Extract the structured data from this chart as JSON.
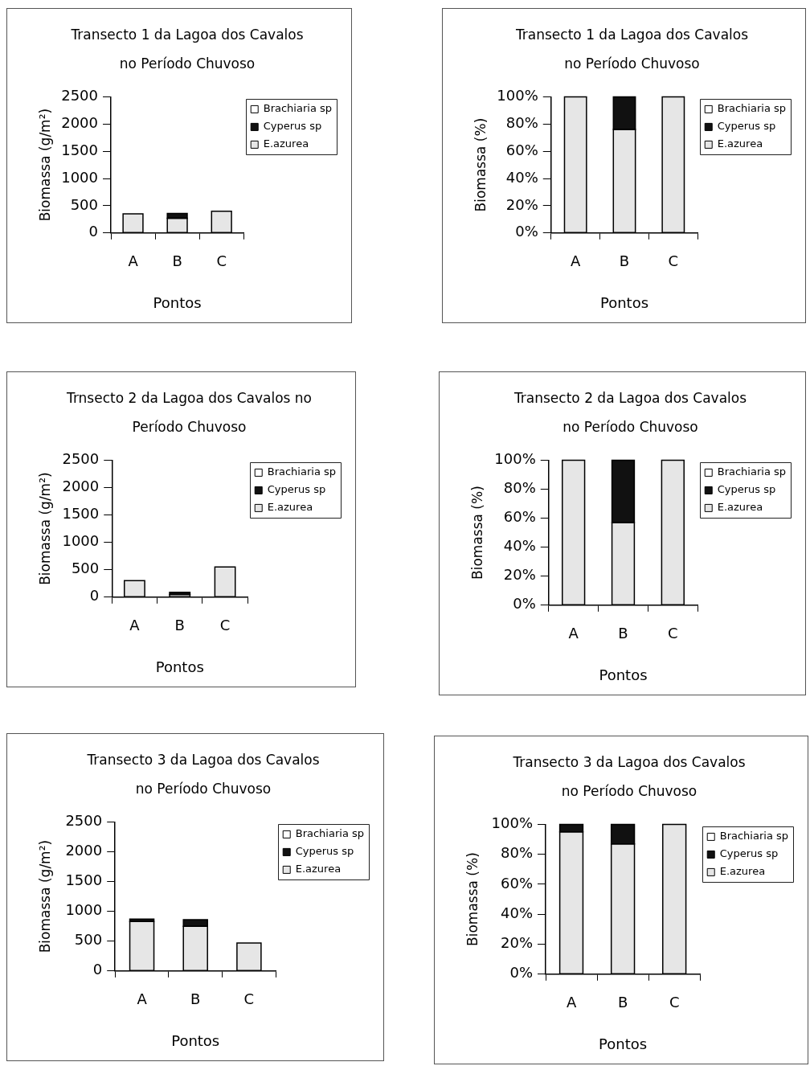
{
  "chart_data": [
    {
      "type": "bar",
      "title": "Transecto 1 da Lagoa dos Cavalos\nno Período Chuvoso",
      "xlabel": "Pontos",
      "ylabel": "Biomassa (g/m²)",
      "categories": [
        "A",
        "B",
        "C"
      ],
      "series": [
        {
          "name": "E.azurea",
          "color": "#e6e6e6",
          "values": [
            350,
            270,
            400
          ]
        },
        {
          "name": "Cyperus sp",
          "color": "#111111",
          "values": [
            0,
            90,
            0
          ]
        },
        {
          "name": "Brachiaria sp",
          "color": "#ffffff",
          "values": [
            0,
            0,
            0
          ]
        }
      ],
      "stacked": true,
      "ylim": [
        0,
        2500
      ],
      "yticks": [
        0,
        500,
        1000,
        1500,
        2000,
        2500
      ],
      "legend": "top right"
    },
    {
      "type": "bar",
      "title": "Transecto 1 da Lagoa dos Cavalos\nno Período Chuvoso",
      "xlabel": "Pontos",
      "ylabel": "Biomassa (%)",
      "categories": [
        "A",
        "B",
        "C"
      ],
      "series": [
        {
          "name": "E.azurea",
          "color": "#e6e6e6",
          "values": [
            100,
            76,
            100
          ]
        },
        {
          "name": "Cyperus sp",
          "color": "#111111",
          "values": [
            0,
            24,
            0
          ]
        },
        {
          "name": "Brachiaria sp",
          "color": "#ffffff",
          "values": [
            0,
            0,
            0
          ]
        }
      ],
      "stacked": true,
      "ylim": [
        0,
        100
      ],
      "yticks": [
        {
          "value": 0,
          "label": "0%"
        },
        {
          "value": 20,
          "label": "20%"
        },
        {
          "value": 40,
          "label": "40%"
        },
        {
          "value": 60,
          "label": "60%"
        },
        {
          "value": 80,
          "label": "80%"
        },
        {
          "value": 100,
          "label": "100%"
        }
      ],
      "legend": "top right"
    },
    {
      "type": "bar",
      "title": "Trnsecto 2 da Lagoa dos Cavalos no\nPeríodo Chuvoso",
      "xlabel": "Pontos",
      "ylabel": "Biomassa (g/m²)",
      "categories": [
        "A",
        "B",
        "C"
      ],
      "series": [
        {
          "name": "E.azurea",
          "color": "#e6e6e6",
          "values": [
            300,
            50,
            550
          ]
        },
        {
          "name": "Cyperus sp",
          "color": "#111111",
          "values": [
            0,
            40,
            0
          ]
        },
        {
          "name": "Brachiaria sp",
          "color": "#ffffff",
          "values": [
            0,
            0,
            0
          ]
        }
      ],
      "stacked": true,
      "ylim": [
        0,
        2500
      ],
      "yticks": [
        0,
        500,
        1000,
        1500,
        2000,
        2500
      ],
      "legend": "top right"
    },
    {
      "type": "bar",
      "title": "Transecto 2 da Lagoa dos Cavalos\nno Período Chuvoso",
      "xlabel": "Pontos",
      "ylabel": "Biomassa (%)",
      "categories": [
        "A",
        "B",
        "C"
      ],
      "series": [
        {
          "name": "E.azurea",
          "color": "#e6e6e6",
          "values": [
            100,
            57,
            100
          ]
        },
        {
          "name": "Cyperus sp",
          "color": "#111111",
          "values": [
            0,
            43,
            0
          ]
        },
        {
          "name": "Brachiaria sp",
          "color": "#ffffff",
          "values": [
            0,
            0,
            0
          ]
        }
      ],
      "stacked": true,
      "ylim": [
        0,
        100
      ],
      "yticks": [
        {
          "value": 0,
          "label": "0%"
        },
        {
          "value": 20,
          "label": "20%"
        },
        {
          "value": 40,
          "label": "40%"
        },
        {
          "value": 60,
          "label": "60%"
        },
        {
          "value": 80,
          "label": "80%"
        },
        {
          "value": 100,
          "label": "100%"
        }
      ],
      "legend": "top right"
    },
    {
      "type": "bar",
      "title": "Transecto 3 da Lagoa dos Cavalos\nno Período Chuvoso",
      "xlabel": "Pontos",
      "ylabel": "Biomassa (g/m²)",
      "categories": [
        "A",
        "B",
        "C"
      ],
      "series": [
        {
          "name": "E.azurea",
          "color": "#e6e6e6",
          "values": [
            830,
            750,
            470
          ]
        },
        {
          "name": "Cyperus sp",
          "color": "#111111",
          "values": [
            40,
            110,
            0
          ]
        },
        {
          "name": "Brachiaria sp",
          "color": "#ffffff",
          "values": [
            0,
            0,
            0
          ]
        }
      ],
      "stacked": true,
      "ylim": [
        0,
        2500
      ],
      "yticks": [
        0,
        500,
        1000,
        1500,
        2000,
        2500
      ],
      "legend": "top right"
    },
    {
      "type": "bar",
      "title": "Transecto 3 da Lagoa dos Cavalos\nno Período Chuvoso",
      "xlabel": "Pontos",
      "ylabel": "Biomassa (%)",
      "categories": [
        "A",
        "B",
        "C"
      ],
      "series": [
        {
          "name": "E.azurea",
          "color": "#e6e6e6",
          "values": [
            95,
            87,
            100
          ]
        },
        {
          "name": "Cyperus sp",
          "color": "#111111",
          "values": [
            5,
            13,
            0
          ]
        },
        {
          "name": "Brachiaria sp",
          "color": "#ffffff",
          "values": [
            0,
            0,
            0
          ]
        }
      ],
      "stacked": true,
      "ylim": [
        0,
        100
      ],
      "yticks": [
        {
          "value": 0,
          "label": "0%"
        },
        {
          "value": 20,
          "label": "20%"
        },
        {
          "value": 40,
          "label": "40%"
        },
        {
          "value": 60,
          "label": "60%"
        },
        {
          "value": 80,
          "label": "80%"
        },
        {
          "value": 100,
          "label": "100%"
        }
      ],
      "legend": "top right"
    }
  ]
}
